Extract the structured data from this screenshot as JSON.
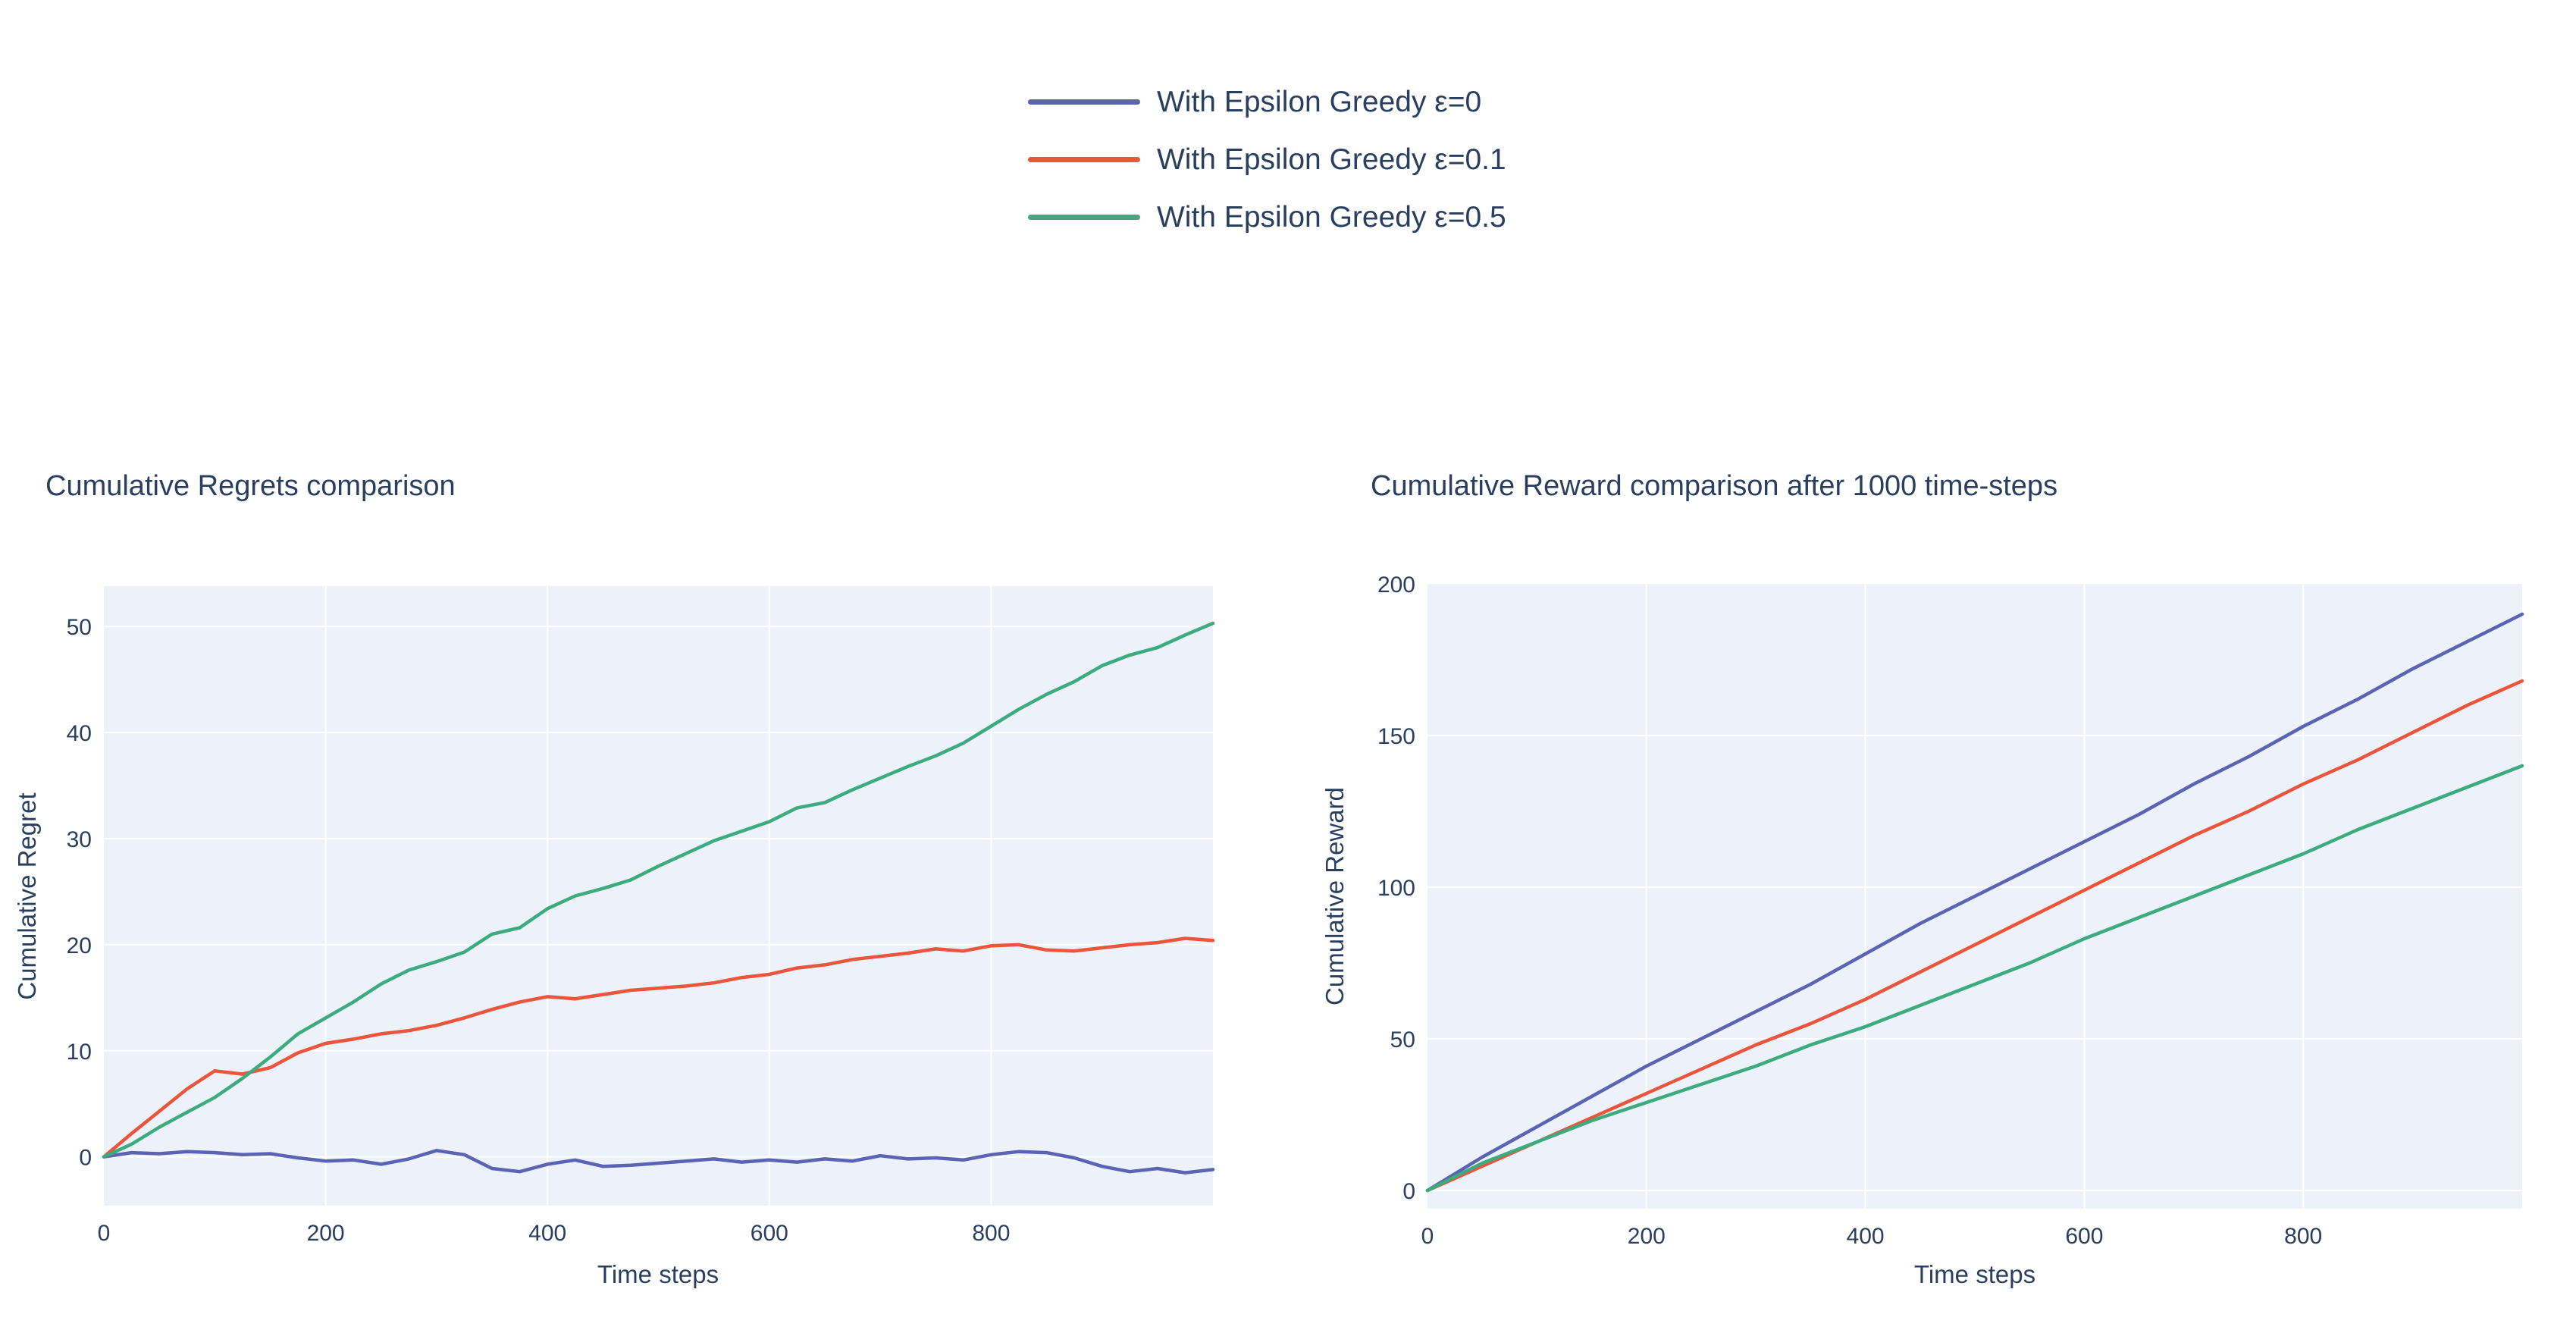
{
  "colors": {
    "text": "#2a3f5f",
    "paper_bg": "#ffffff",
    "plot_bg": "#edf2fa",
    "grid": "#ffffff",
    "series_purple": "#5a63b4",
    "series_red": "#eb553c",
    "series_green": "#3cab7e"
  },
  "legend": {
    "items": [
      {
        "label": "With Epsilon Greedy ε=0",
        "color": "#5a63b4"
      },
      {
        "label": "With Epsilon Greedy ε=0.1",
        "color": "#eb553c"
      },
      {
        "label": "With Epsilon Greedy ε=0.5",
        "color": "#3cab7e"
      }
    ]
  },
  "chart_data": [
    {
      "type": "line",
      "title": "Cumulative Regrets comparison",
      "xlabel": "Time steps",
      "ylabel": "Cumulative Regret",
      "xlim": [
        0,
        1000
      ],
      "ylim": [
        -4.6,
        53.8
      ],
      "xticks": [
        0,
        200,
        400,
        600,
        800
      ],
      "yticks": [
        0,
        10,
        20,
        30,
        40,
        50
      ],
      "grid": true,
      "legend_position": "top-center",
      "x": [
        0,
        25,
        50,
        75,
        100,
        125,
        150,
        175,
        200,
        225,
        250,
        275,
        300,
        325,
        350,
        375,
        400,
        425,
        450,
        475,
        500,
        525,
        550,
        575,
        600,
        625,
        650,
        675,
        700,
        725,
        750,
        775,
        800,
        825,
        850,
        875,
        900,
        925,
        950,
        975,
        1000
      ],
      "series": [
        {
          "name": "With Epsilon Greedy ε=0",
          "color": "#5a63b4",
          "values": [
            0,
            0.4,
            0.3,
            0.5,
            0.4,
            0.2,
            0.3,
            -0.1,
            -0.4,
            -0.3,
            -0.7,
            -0.2,
            0.6,
            0.2,
            -1.1,
            -1.4,
            -0.7,
            -0.3,
            -0.9,
            -0.8,
            -0.6,
            -0.4,
            -0.2,
            -0.5,
            -0.3,
            -0.5,
            -0.2,
            -0.4,
            0.1,
            -0.2,
            -0.1,
            -0.3,
            0.2,
            0.5,
            0.4,
            -0.1,
            -0.9,
            -1.4,
            -1.1,
            -1.5,
            -1.2
          ]
        },
        {
          "name": "With Epsilon Greedy ε=0.1",
          "color": "#eb553c",
          "values": [
            0,
            2.2,
            4.3,
            6.4,
            8.1,
            7.8,
            8.4,
            9.8,
            10.7,
            11.1,
            11.6,
            11.9,
            12.4,
            13.1,
            13.9,
            14.6,
            15.1,
            14.9,
            15.3,
            15.7,
            15.9,
            16.1,
            16.4,
            16.9,
            17.2,
            17.8,
            18.1,
            18.6,
            18.9,
            19.2,
            19.6,
            19.4,
            19.9,
            20.0,
            19.5,
            19.4,
            19.7,
            20.0,
            20.2,
            20.6,
            20.4
          ]
        },
        {
          "name": "With Epsilon Greedy ε=0.5",
          "color": "#3cab7e",
          "values": [
            0,
            1.2,
            2.8,
            4.2,
            5.6,
            7.4,
            9.4,
            11.6,
            13.1,
            14.6,
            16.3,
            17.6,
            18.4,
            19.3,
            21.0,
            21.6,
            23.4,
            24.6,
            25.3,
            26.1,
            27.4,
            28.6,
            29.8,
            30.7,
            31.6,
            32.9,
            33.4,
            34.6,
            35.7,
            36.8,
            37.8,
            39.0,
            40.6,
            42.2,
            43.6,
            44.8,
            46.3,
            47.3,
            48.0,
            49.2,
            50.3
          ]
        }
      ]
    },
    {
      "type": "line",
      "title": "Cumulative Reward comparison after 1000 time-steps",
      "xlabel": "Time steps",
      "ylabel": "Cumulative Reward",
      "xlim": [
        0,
        1000
      ],
      "ylim": [
        -6,
        200
      ],
      "xticks": [
        0,
        200,
        400,
        600,
        800
      ],
      "yticks": [
        0,
        50,
        100,
        150,
        200
      ],
      "grid": true,
      "legend_position": "top-center",
      "x": [
        0,
        50,
        100,
        150,
        200,
        250,
        300,
        350,
        400,
        450,
        500,
        550,
        600,
        650,
        700,
        750,
        800,
        850,
        900,
        950,
        1000
      ],
      "series": [
        {
          "name": "With Epsilon Greedy ε=0",
          "color": "#5a63b4",
          "values": [
            0,
            11,
            21,
            31,
            41,
            50,
            59,
            68,
            78,
            88,
            97,
            106,
            115,
            124,
            134,
            143,
            153,
            162,
            172,
            181,
            190
          ]
        },
        {
          "name": "With Epsilon Greedy ε=0.1",
          "color": "#eb553c",
          "values": [
            0,
            8,
            16,
            24,
            32,
            40,
            48,
            55,
            63,
            72,
            81,
            90,
            99,
            108,
            117,
            125,
            134,
            142,
            151,
            160,
            168
          ]
        },
        {
          "name": "With Epsilon Greedy ε=0.5",
          "color": "#3cab7e",
          "values": [
            0,
            9,
            16,
            23,
            29,
            35,
            41,
            48,
            54,
            61,
            68,
            75,
            83,
            90,
            97,
            104,
            111,
            119,
            126,
            133,
            140
          ]
        }
      ]
    }
  ]
}
